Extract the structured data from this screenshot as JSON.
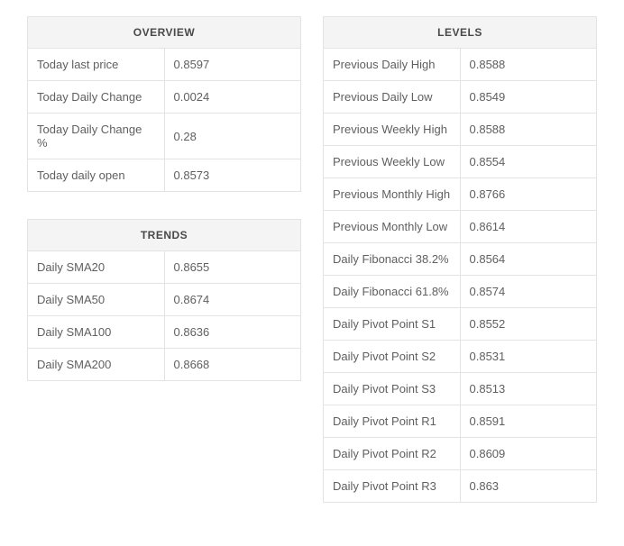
{
  "overview": {
    "title": "OVERVIEW",
    "rows": [
      {
        "label": "Today last price",
        "value": "0.8597"
      },
      {
        "label": "Today Daily Change",
        "value": "0.0024"
      },
      {
        "label": "Today Daily Change %",
        "value": "0.28"
      },
      {
        "label": "Today daily open",
        "value": "0.8573"
      }
    ]
  },
  "trends": {
    "title": "TRENDS",
    "rows": [
      {
        "label": "Daily SMA20",
        "value": "0.8655"
      },
      {
        "label": "Daily SMA50",
        "value": "0.8674"
      },
      {
        "label": "Daily SMA100",
        "value": "0.8636"
      },
      {
        "label": "Daily SMA200",
        "value": "0.8668"
      }
    ]
  },
  "levels": {
    "title": "LEVELS",
    "rows": [
      {
        "label": "Previous Daily High",
        "value": "0.8588"
      },
      {
        "label": "Previous Daily Low",
        "value": "0.8549"
      },
      {
        "label": "Previous Weekly High",
        "value": "0.8588"
      },
      {
        "label": "Previous Weekly Low",
        "value": "0.8554"
      },
      {
        "label": "Previous Monthly High",
        "value": "0.8766"
      },
      {
        "label": "Previous Monthly Low",
        "value": "0.8614"
      },
      {
        "label": "Daily Fibonacci 38.2%",
        "value": "0.8564"
      },
      {
        "label": "Daily Fibonacci 61.8%",
        "value": "0.8574"
      },
      {
        "label": "Daily Pivot Point S1",
        "value": "0.8552"
      },
      {
        "label": "Daily Pivot Point S2",
        "value": "0.8531"
      },
      {
        "label": "Daily Pivot Point S3",
        "value": "0.8513"
      },
      {
        "label": "Daily Pivot Point R1",
        "value": "0.8591"
      },
      {
        "label": "Daily Pivot Point R2",
        "value": "0.8609"
      },
      {
        "label": "Daily Pivot Point R3",
        "value": "0.863"
      }
    ]
  },
  "style": {
    "type": "table",
    "border_color": "#e3e3e3",
    "header_bg": "#f4f4f4",
    "text_color": "#606060",
    "header_text_color": "#49494a",
    "background_color": "#ffffff",
    "font_family": "Arial",
    "body_fontsize": 13,
    "header_fontsize": 12,
    "cell_padding": 10,
    "column_split": [
      0.5,
      0.5
    ]
  }
}
